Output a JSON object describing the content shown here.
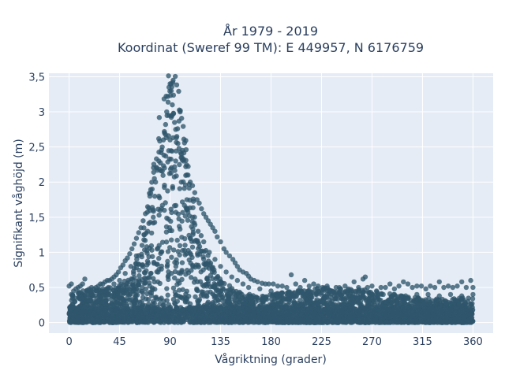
{
  "chart_data": {
    "type": "scatter",
    "title_line1": "År 1979 - 2019",
    "title_line2": "Koordinat (Sweref 99 TM): E 449957, N 6176759",
    "xlabel": "Vågriktning (grader)",
    "ylabel": "Signifikant våghöjd (m)",
    "xlim": [
      -18,
      378
    ],
    "ylim": [
      -0.15,
      3.55
    ],
    "grid": true,
    "x_ticks": [
      {
        "value": 0,
        "label": "0"
      },
      {
        "value": 45,
        "label": "45"
      },
      {
        "value": 90,
        "label": "90"
      },
      {
        "value": 135,
        "label": "135"
      },
      {
        "value": 180,
        "label": "180"
      },
      {
        "value": 225,
        "label": "225"
      },
      {
        "value": 270,
        "label": "270"
      },
      {
        "value": 315,
        "label": "315"
      },
      {
        "value": 360,
        "label": "360"
      }
    ],
    "y_ticks": [
      {
        "value": 0,
        "label": "0"
      },
      {
        "value": 0.5,
        "label": "0,5"
      },
      {
        "value": 1,
        "label": "1"
      },
      {
        "value": 1.5,
        "label": "1,5"
      },
      {
        "value": 2,
        "label": "2"
      },
      {
        "value": 2.5,
        "label": "2,5"
      },
      {
        "value": 3,
        "label": "3"
      },
      {
        "value": 3.5,
        "label": "3,5"
      }
    ],
    "colors": {
      "marker": "#2f566c",
      "plot_bg": "#e5ecf6",
      "grid": "#ffffff"
    },
    "points": [
      [
        90,
        3.4
      ],
      [
        89,
        3.35
      ],
      [
        91,
        3.3
      ],
      [
        88,
        3.22
      ],
      [
        92,
        3.1
      ],
      [
        87,
        3.0
      ],
      [
        93,
        2.98
      ],
      [
        89,
        2.95
      ],
      [
        94,
        2.85
      ],
      [
        86,
        2.82
      ],
      [
        95,
        2.75
      ],
      [
        85,
        2.7
      ],
      [
        96,
        2.65
      ],
      [
        84,
        2.6
      ],
      [
        97,
        2.55
      ],
      [
        83,
        2.5
      ],
      [
        98,
        2.48
      ],
      [
        82,
        2.42
      ],
      [
        100,
        2.4
      ],
      [
        80,
        2.3
      ],
      [
        102,
        2.3
      ],
      [
        78,
        2.2
      ],
      [
        104,
        2.22
      ],
      [
        106,
        2.1
      ],
      [
        76,
        2.05
      ],
      [
        108,
        2.0
      ],
      [
        110,
        1.95
      ],
      [
        74,
        1.9
      ],
      [
        112,
        1.85
      ],
      [
        72,
        1.8
      ],
      [
        114,
        1.75
      ],
      [
        116,
        1.7
      ],
      [
        70,
        1.65
      ],
      [
        118,
        1.62
      ],
      [
        68,
        1.55
      ],
      [
        120,
        1.55
      ],
      [
        122,
        1.5
      ],
      [
        66,
        1.45
      ],
      [
        124,
        1.45
      ],
      [
        126,
        1.4
      ],
      [
        64,
        1.35
      ],
      [
        128,
        1.35
      ],
      [
        130,
        1.3
      ],
      [
        62,
        1.28
      ],
      [
        132,
        1.22
      ],
      [
        60,
        1.2
      ],
      [
        135,
        1.15
      ],
      [
        58,
        1.12
      ],
      [
        138,
        1.05
      ],
      [
        56,
        1.05
      ],
      [
        140,
        1.0
      ],
      [
        54,
        0.98
      ],
      [
        143,
        0.95
      ],
      [
        52,
        0.92
      ],
      [
        146,
        0.9
      ],
      [
        50,
        0.88
      ],
      [
        148,
        0.85
      ],
      [
        48,
        0.82
      ],
      [
        150,
        0.8
      ],
      [
        46,
        0.78
      ],
      [
        152,
        0.75
      ],
      [
        44,
        0.72
      ],
      [
        155,
        0.72
      ],
      [
        42,
        0.68
      ],
      [
        158,
        0.7
      ],
      [
        40,
        0.65
      ],
      [
        160,
        0.66
      ],
      [
        38,
        0.62
      ],
      [
        162,
        0.62
      ],
      [
        36,
        0.6
      ],
      [
        165,
        0.6
      ],
      [
        34,
        0.6
      ],
      [
        168,
        0.58
      ],
      [
        32,
        0.58
      ],
      [
        172,
        0.56
      ],
      [
        30,
        0.55
      ],
      [
        175,
        0.55
      ],
      [
        28,
        0.55
      ],
      [
        178,
        0.55
      ],
      [
        26,
        0.52
      ],
      [
        182,
        0.55
      ],
      [
        24,
        0.5
      ],
      [
        186,
        0.52
      ],
      [
        22,
        0.48
      ],
      [
        190,
        0.52
      ],
      [
        20,
        0.5
      ],
      [
        194,
        0.5
      ],
      [
        18,
        0.48
      ],
      [
        198,
        0.68
      ],
      [
        16,
        0.45
      ],
      [
        202,
        0.55
      ],
      [
        14,
        0.62
      ],
      [
        206,
        0.5
      ],
      [
        12,
        0.55
      ],
      [
        210,
        0.6
      ],
      [
        10,
        0.52
      ],
      [
        214,
        0.52
      ],
      [
        8,
        0.5
      ],
      [
        218,
        0.55
      ],
      [
        6,
        0.48
      ],
      [
        222,
        0.52
      ],
      [
        4,
        0.45
      ],
      [
        226,
        0.5
      ],
      [
        2,
        0.55
      ],
      [
        230,
        0.52
      ],
      [
        0,
        0.52
      ],
      [
        234,
        0.45
      ],
      [
        238,
        0.5
      ],
      [
        242,
        0.48
      ],
      [
        246,
        0.52
      ],
      [
        250,
        0.45
      ],
      [
        254,
        0.58
      ],
      [
        258,
        0.5
      ],
      [
        262,
        0.62
      ],
      [
        264,
        0.65
      ],
      [
        266,
        0.5
      ],
      [
        270,
        0.52
      ],
      [
        274,
        0.45
      ],
      [
        278,
        0.5
      ],
      [
        282,
        0.5
      ],
      [
        286,
        0.55
      ],
      [
        290,
        0.48
      ],
      [
        294,
        0.52
      ],
      [
        298,
        0.58
      ],
      [
        302,
        0.55
      ],
      [
        306,
        0.5
      ],
      [
        310,
        0.52
      ],
      [
        314,
        0.52
      ],
      [
        318,
        0.48
      ],
      [
        322,
        0.52
      ],
      [
        326,
        0.5
      ],
      [
        330,
        0.58
      ],
      [
        334,
        0.5
      ],
      [
        338,
        0.52
      ],
      [
        342,
        0.5
      ],
      [
        346,
        0.52
      ],
      [
        350,
        0.58
      ],
      [
        354,
        0.5
      ],
      [
        358,
        0.6
      ],
      [
        360,
        0.5
      ],
      [
        2,
        0.4
      ],
      [
        5,
        0.35
      ],
      [
        8,
        0.42
      ],
      [
        12,
        0.38
      ],
      [
        15,
        0.4
      ],
      [
        20,
        0.42
      ],
      [
        25,
        0.45
      ],
      [
        30,
        0.48
      ],
      [
        35,
        0.5
      ],
      [
        40,
        0.55
      ],
      [
        45,
        0.6
      ],
      [
        50,
        0.7
      ],
      [
        55,
        0.8
      ],
      [
        60,
        0.95
      ],
      [
        65,
        1.1
      ],
      [
        70,
        1.3
      ],
      [
        75,
        1.5
      ],
      [
        80,
        1.8
      ],
      [
        85,
        2.2
      ],
      [
        90,
        2.6
      ],
      [
        95,
        2.3
      ],
      [
        100,
        2.0
      ],
      [
        105,
        1.75
      ],
      [
        110,
        1.5
      ],
      [
        115,
        1.3
      ],
      [
        120,
        1.15
      ],
      [
        125,
        1.0
      ],
      [
        130,
        0.9
      ],
      [
        135,
        0.8
      ],
      [
        140,
        0.72
      ],
      [
        145,
        0.65
      ],
      [
        150,
        0.6
      ],
      [
        155,
        0.55
      ],
      [
        160,
        0.5
      ],
      [
        170,
        0.48
      ],
      [
        180,
        0.45
      ],
      [
        190,
        0.42
      ],
      [
        200,
        0.42
      ],
      [
        210,
        0.4
      ],
      [
        220,
        0.4
      ],
      [
        230,
        0.4
      ],
      [
        240,
        0.4
      ],
      [
        250,
        0.38
      ],
      [
        260,
        0.4
      ],
      [
        270,
        0.4
      ],
      [
        280,
        0.4
      ],
      [
        290,
        0.4
      ],
      [
        300,
        0.38
      ],
      [
        310,
        0.4
      ],
      [
        320,
        0.4
      ],
      [
        330,
        0.38
      ],
      [
        340,
        0.4
      ],
      [
        350,
        0.38
      ],
      [
        360,
        0.4
      ]
    ]
  }
}
